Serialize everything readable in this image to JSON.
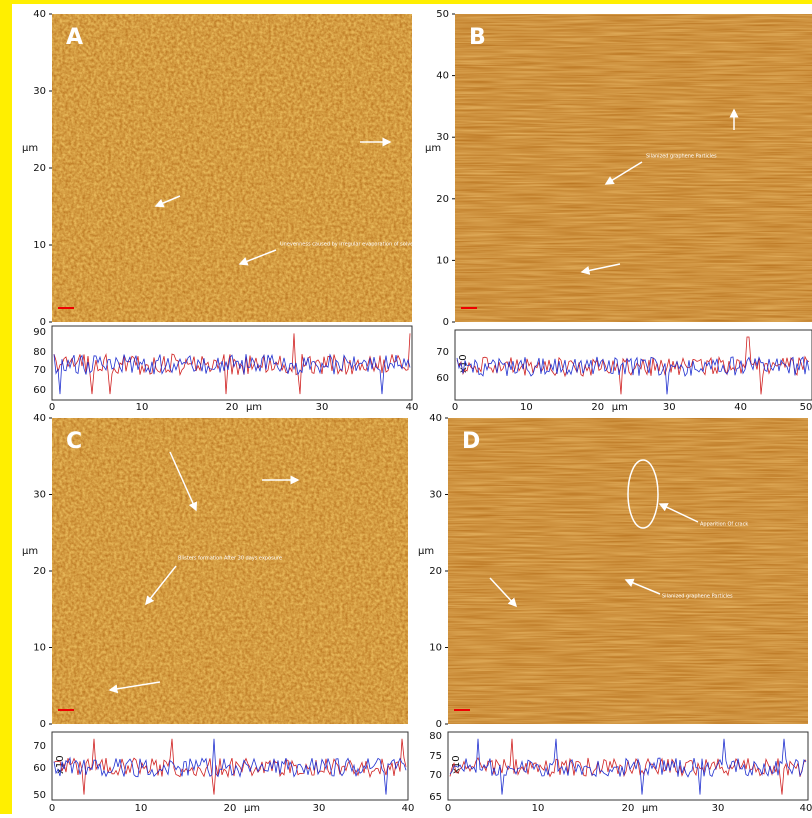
{
  "panels": [
    {
      "label": "A",
      "y_unit": "μm",
      "yticks": [
        "0",
        "10",
        "20",
        "30",
        "40"
      ],
      "profile_yticks": [
        "90",
        "80",
        "70",
        "60"
      ],
      "xticks": [
        "0",
        "10",
        "20",
        "30",
        "40"
      ],
      "x_unit": "μm",
      "annotations": [
        "Unevenness caused by irregular evaporation of solvents During drying"
      ]
    },
    {
      "label": "B",
      "y_unit": "μm",
      "yticks": [
        "0",
        "10",
        "20",
        "30",
        "40",
        "50"
      ],
      "profile_yticks": [
        "70",
        "60"
      ],
      "profile_scale": "x10",
      "xticks": [
        "0",
        "10",
        "20",
        "30",
        "40",
        "50"
      ],
      "x_unit": "μm",
      "annotations": [
        "Silanized graphene Particles"
      ]
    },
    {
      "label": "C",
      "y_unit": "μm",
      "yticks": [
        "0",
        "10",
        "20",
        "30",
        "40"
      ],
      "profile_yticks": [
        "70",
        "60",
        "50"
      ],
      "profile_scale": "x10",
      "xticks": [
        "0",
        "10",
        "20",
        "30",
        "40"
      ],
      "x_unit": "μm",
      "annotations": [
        "Blisters formation After 30 days exposure"
      ]
    },
    {
      "label": "D",
      "y_unit": "μm",
      "yticks": [
        "0",
        "10",
        "20",
        "30",
        "40"
      ],
      "profile_yticks": [
        "80",
        "75",
        "70",
        "65"
      ],
      "profile_scale": "x10",
      "xticks": [
        "0",
        "10",
        "20",
        "30",
        "40"
      ],
      "x_unit": "μm",
      "annotations": [
        "Apparition Of crack",
        "Silanized graphene Particles"
      ]
    }
  ]
}
